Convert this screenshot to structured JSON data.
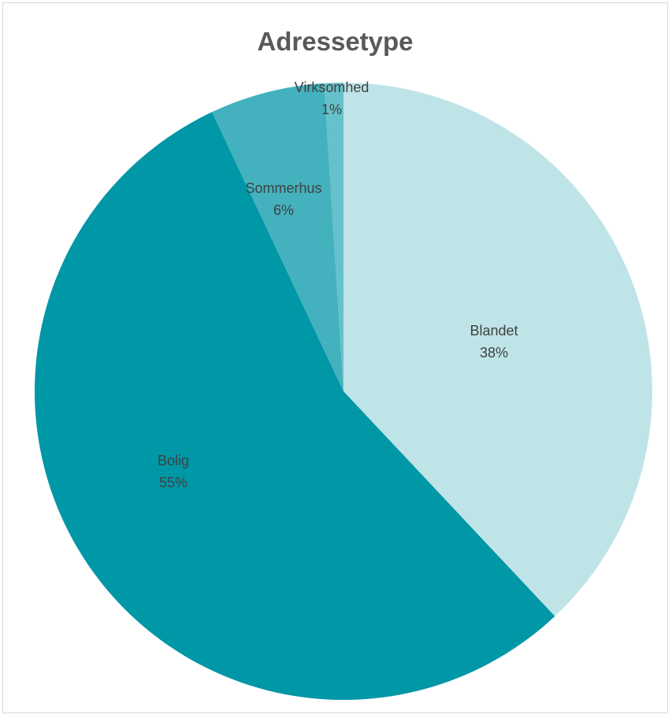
{
  "chart_data": {
    "type": "pie",
    "title": "Adressetype",
    "slices": [
      {
        "name": "Blandet",
        "value": 38,
        "label": "38%",
        "color": "#bfe4e8"
      },
      {
        "name": "Bolig",
        "value": 55,
        "label": "55%",
        "color": "#0097a7"
      },
      {
        "name": "Sommerhus",
        "value": 6,
        "label": "6%",
        "color": "#43b2be"
      },
      {
        "name": "Virksomhed",
        "value": 1,
        "label": "1%",
        "color": "#65c1cb"
      }
    ]
  }
}
